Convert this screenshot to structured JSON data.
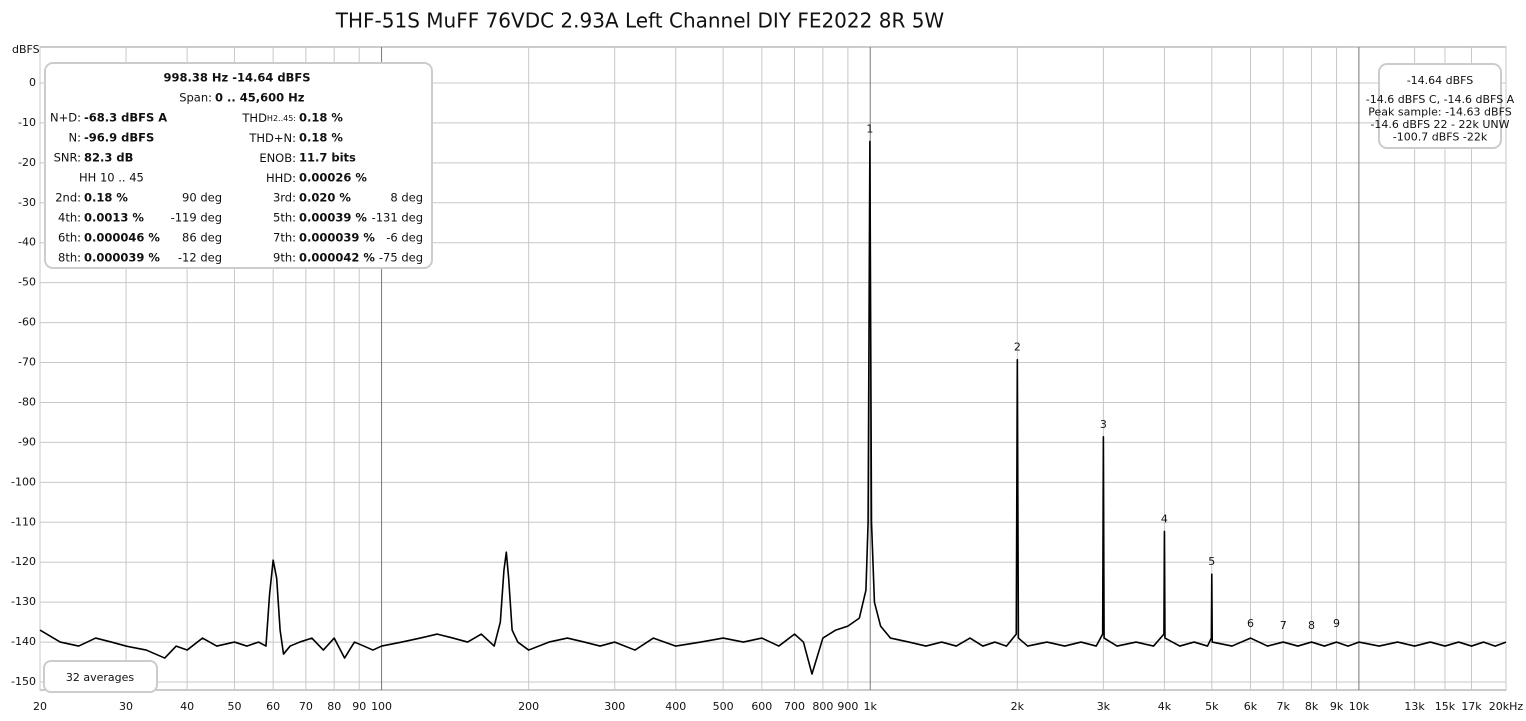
{
  "chart_data": {
    "type": "line",
    "title": "THF-51S MuFF 76VDC 2.93A Left Channel DIY FE2022 8R 5W",
    "y_label": "dBFS",
    "log_x": true,
    "grid": true,
    "xlim": [
      20,
      20000
    ],
    "ylim": [
      -152,
      9
    ],
    "yticks": [
      0,
      -10,
      -20,
      -30,
      -40,
      -50,
      -60,
      -70,
      -80,
      -90,
      -100,
      -110,
      -120,
      -130,
      -140,
      -150
    ],
    "xticks": [
      20,
      30,
      40,
      50,
      60,
      70,
      80,
      90,
      100,
      200,
      300,
      400,
      500,
      600,
      700,
      800,
      900,
      {
        "value": 1000,
        "label": "1k"
      },
      {
        "value": 2000,
        "label": "2k"
      },
      {
        "value": 3000,
        "label": "3k"
      },
      {
        "value": 4000,
        "label": "4k"
      },
      {
        "value": 5000,
        "label": "5k"
      },
      {
        "value": 6000,
        "label": "6k"
      },
      {
        "value": 7000,
        "label": "7k"
      },
      {
        "value": 8000,
        "label": "8k"
      },
      {
        "value": 9000,
        "label": "9k"
      },
      {
        "value": 10000,
        "label": "10k"
      },
      {
        "value": 13000,
        "label": "13k"
      },
      {
        "value": 15000,
        "label": "15k"
      },
      {
        "value": 17000,
        "label": "17k"
      },
      {
        "value": 20000,
        "label": "20kHz"
      }
    ],
    "series": [
      {
        "color": "#000000",
        "x": [
          20,
          22,
          24,
          26,
          28,
          30,
          33,
          36,
          38,
          40,
          43,
          46,
          50,
          53,
          56,
          58,
          59,
          60,
          61,
          62,
          63,
          65,
          68,
          72,
          76,
          80,
          84,
          88,
          92,
          96,
          100,
          110,
          120,
          130,
          140,
          150,
          160,
          170,
          175,
          178,
          180,
          182,
          185,
          190,
          200,
          220,
          240,
          260,
          280,
          300,
          330,
          360,
          400,
          450,
          500,
          550,
          600,
          650,
          700,
          730,
          760,
          800,
          850,
          900,
          950,
          980,
          990,
          998.38,
          1006,
          1020,
          1050,
          1100,
          1200,
          1300,
          1400,
          1500,
          1600,
          1700,
          1800,
          1900,
          1990,
          2000,
          2010,
          2100,
          2300,
          2500,
          2700,
          2900,
          2990,
          3000,
          3010,
          3200,
          3500,
          3800,
          3990,
          4000,
          4010,
          4300,
          4600,
          4900,
          4990,
          5000,
          5010,
          5500,
          6000,
          6500,
          7000,
          7500,
          8000,
          8500,
          9000,
          9500,
          10000,
          11000,
          12000,
          13000,
          14000,
          15000,
          16000,
          17000,
          18000,
          19000,
          20000
        ],
        "values": [
          -137,
          -140,
          -141,
          -139,
          -140,
          -141,
          -142,
          -144,
          -141,
          -142,
          -139,
          -141,
          -140,
          -141,
          -140,
          -141,
          -128,
          -119.5,
          -124,
          -137,
          -143,
          -141,
          -140,
          -139,
          -142,
          -139,
          -144,
          -140,
          -141,
          -142,
          -141,
          -140,
          -139,
          -138,
          -139,
          -140,
          -138,
          -141,
          -135,
          -122,
          -117.5,
          -124,
          -137,
          -140,
          -142,
          -140,
          -139,
          -140,
          -141,
          -140,
          -142,
          -139,
          -141,
          -140,
          -139,
          -140,
          -139,
          -141,
          -138,
          -140,
          -148,
          -139,
          -137,
          -136,
          -134,
          -127,
          -110,
          -14.64,
          -110,
          -130,
          -136,
          -139,
          -140,
          -141,
          -140,
          -141,
          -139,
          -141,
          -140,
          -141,
          -138,
          -69.3,
          -139,
          -141,
          -140,
          -141,
          -140,
          -141,
          -138,
          -88.6,
          -139,
          -141,
          -140,
          -141,
          -138,
          -112.3,
          -139,
          -141,
          -140,
          -141,
          -139,
          -123,
          -140,
          -141,
          -139,
          -141,
          -140,
          -141,
          -140,
          -141,
          -140,
          -141,
          -140,
          -141,
          -140,
          -141,
          -140,
          -141,
          -140,
          -141,
          -140,
          -141,
          -140
        ]
      }
    ],
    "harmonic_markers": [
      {
        "text": "1",
        "x": 998.38,
        "y": -14.64
      },
      {
        "text": "2",
        "x": 2000,
        "y": -69.3
      },
      {
        "text": "3",
        "x": 3000,
        "y": -88.6
      },
      {
        "text": "4",
        "x": 4000,
        "y": -112.3
      },
      {
        "text": "5",
        "x": 5000,
        "y": -123
      },
      {
        "text": "6",
        "x": 6000,
        "y": -138.5
      },
      {
        "text": "7",
        "x": 7000,
        "y": -139
      },
      {
        "text": "8",
        "x": 8000,
        "y": -139
      },
      {
        "text": "9",
        "x": 9000,
        "y": -138.5
      }
    ],
    "info": {
      "header": "998.38 Hz  -14.64 dBFS",
      "span_label": "Span:",
      "span_value": "0 .. 45,600 Hz",
      "left": [
        {
          "label": "N+D:",
          "value": "-68.3 dBFS A"
        },
        {
          "label": "N:",
          "value": "-96.9 dBFS"
        },
        {
          "label": "SNR:",
          "value": "82.3 dB"
        }
      ],
      "right": [
        {
          "label": "THD",
          "sub": "H2..45:",
          "value": "0.18 %"
        },
        {
          "label": "THD+N:",
          "value": "0.18 %"
        },
        {
          "label": "ENOB:",
          "value": "11.7 bits"
        },
        {
          "label": "HHD:",
          "value": "0.00026 %"
        }
      ],
      "hh_label": "HH 10 .. 45",
      "harmonics": [
        {
          "label": "2nd:",
          "value": "0.18 %",
          "phase": "90 deg"
        },
        {
          "label": "3rd:",
          "value": "0.020 %",
          "phase": "8 deg"
        },
        {
          "label": "4th:",
          "value": "0.0013 %",
          "phase": "-119 deg"
        },
        {
          "label": "5th:",
          "value": "0.00039 %",
          "phase": "-131 deg"
        },
        {
          "label": "6th:",
          "value": "0.000046 %",
          "phase": "86 deg"
        },
        {
          "label": "7th:",
          "value": "0.000039 %",
          "phase": "-6 deg"
        },
        {
          "label": "8th:",
          "value": "0.000039 %",
          "phase": "-12 deg"
        },
        {
          "label": "9th:",
          "value": "0.000042 %",
          "phase": "-75 deg"
        }
      ]
    },
    "level_box": {
      "level": "-14.64 dBFS",
      "lines": [
        "-14.6 dBFS C, -14.6 dBFS A",
        "Peak sample: -14.63 dBFS",
        "-14.6 dBFS 22 - 22k UNW",
        "-100.7 dBFS -22k"
      ]
    },
    "averages": "32 averages"
  }
}
